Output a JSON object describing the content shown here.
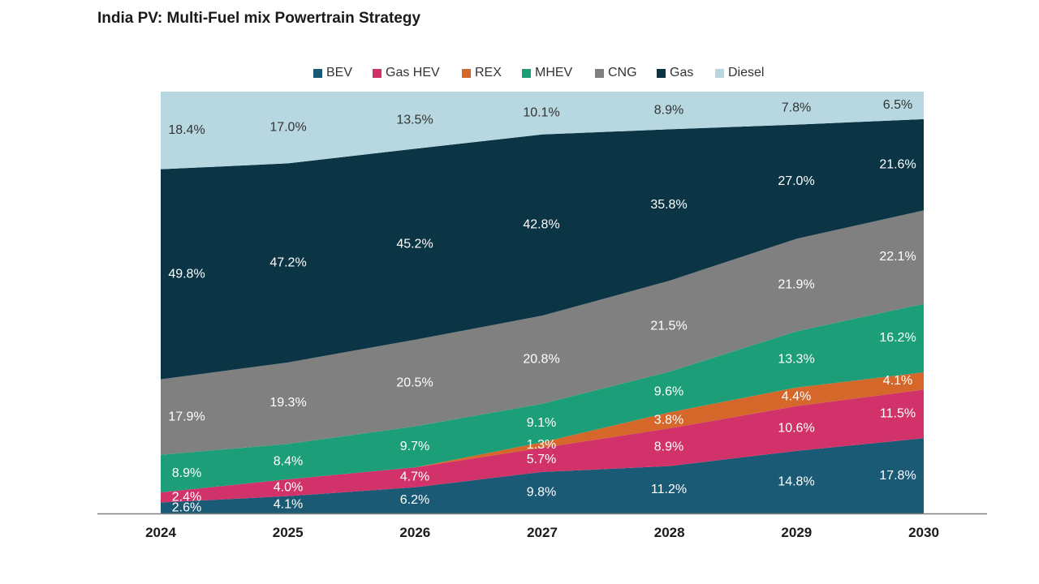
{
  "chart_data": {
    "type": "area",
    "stacked": true,
    "normalized_percent": true,
    "title": "India PV: Multi-Fuel mix Powertrain Strategy",
    "xlabel": "",
    "ylabel": "",
    "categories": [
      "2024",
      "2025",
      "2026",
      "2027",
      "2028",
      "2029",
      "2030"
    ],
    "legend_position": "top-center",
    "grid": false,
    "series": [
      {
        "name": "BEV",
        "color": "#1a5a74",
        "values": [
          2.6,
          4.1,
          6.2,
          9.8,
          11.2,
          14.8,
          17.8
        ]
      },
      {
        "name": "Gas HEV",
        "color": "#d1326a",
        "values": [
          2.4,
          4.0,
          4.7,
          5.7,
          8.9,
          10.6,
          11.5
        ]
      },
      {
        "name": "REX",
        "color": "#d5672b",
        "values": [
          0,
          0,
          0,
          1.3,
          3.8,
          4.4,
          4.1
        ]
      },
      {
        "name": "MHEV",
        "color": "#1c9f78",
        "values": [
          8.9,
          8.4,
          9.7,
          9.1,
          9.6,
          13.3,
          16.2
        ]
      },
      {
        "name": "CNG",
        "color": "#808080",
        "values": [
          17.9,
          19.3,
          20.5,
          20.8,
          21.5,
          21.9,
          22.1
        ]
      },
      {
        "name": "Gas",
        "color": "#0b3545",
        "values": [
          49.8,
          47.2,
          45.2,
          42.8,
          35.8,
          27.0,
          21.6
        ]
      },
      {
        "name": "Diesel",
        "color": "#b7d8e0",
        "values": [
          18.4,
          17.0,
          13.5,
          10.1,
          8.9,
          7.8,
          6.5
        ]
      }
    ],
    "labels": [
      [
        "2.6%",
        "4.1%",
        "6.2%",
        "9.8%",
        "11.2%",
        "14.8%",
        "17.8%"
      ],
      [
        "2.4%",
        "4.0%",
        "4.7%",
        "5.7%",
        "8.9%",
        "10.6%",
        "11.5%"
      ],
      [
        "",
        "",
        "",
        "1.3%",
        "3.8%",
        "4.4%",
        "4.1%"
      ],
      [
        "8.9%",
        "8.4%",
        "9.7%",
        "9.1%",
        "9.6%",
        "13.3%",
        "16.2%"
      ],
      [
        "17.9%",
        "19.3%",
        "20.5%",
        "20.8%",
        "21.5%",
        "21.9%",
        "22.1%"
      ],
      [
        "49.8%",
        "47.2%",
        "45.2%",
        "42.8%",
        "35.8%",
        "27.0%",
        "21.6%"
      ],
      [
        "18.4%",
        "17.0%",
        "13.5%",
        "10.1%",
        "8.9%",
        "7.8%",
        "6.5%"
      ]
    ]
  }
}
